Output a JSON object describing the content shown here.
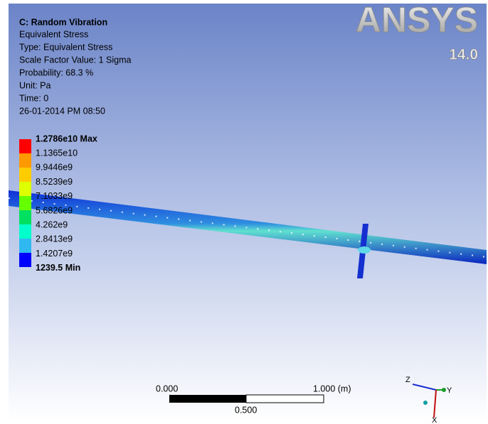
{
  "header": {
    "title": "C: Random Vibration",
    "lines": [
      "Equivalent Stress",
      "Type: Equivalent Stress",
      "Scale Factor Value: 1 Sigma",
      "Probability: 68.3 %",
      "Unit: Pa",
      "Time: 0",
      "26-01-2014 PM 08:50"
    ]
  },
  "legend": {
    "labels": [
      "1.2786e10 Max",
      "1.1365e10",
      "9.9446e9",
      "8.5239e9",
      "7.1033e9",
      "5.6826e9",
      "4.262e9",
      "2.8413e9",
      "1.4207e9",
      "1239.5 Min"
    ]
  },
  "logo": {
    "brand": "ANSYS",
    "version": "14.0"
  },
  "scale_bar": {
    "start": "0.000",
    "end": "1.000 (m)",
    "mid": "0.500"
  },
  "triad": {
    "z": "Z",
    "y": "Y",
    "x": "X"
  }
}
